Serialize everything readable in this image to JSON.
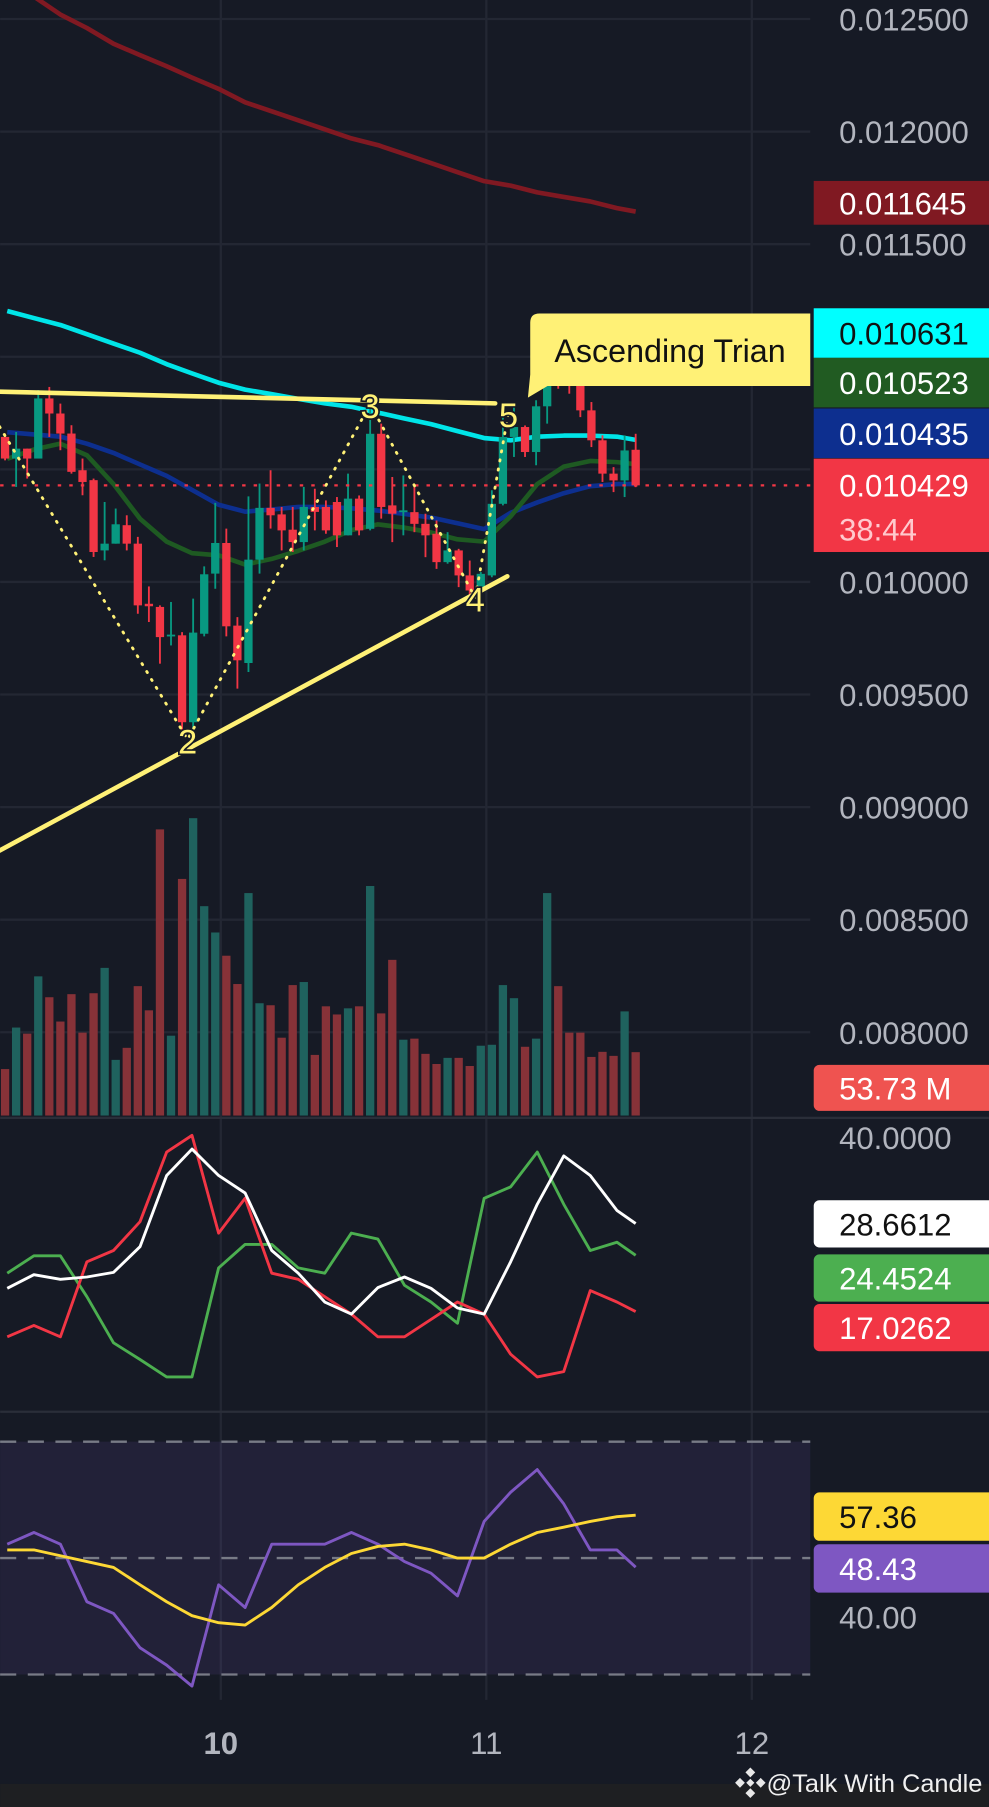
{
  "colors": {
    "background": "#161a25",
    "grid": "#232733",
    "candle_up": "#089981",
    "candle_down": "#f23645",
    "volume_up": "#1f625e",
    "volume_down": "#873238",
    "ma_long": "#801922",
    "ma_cyan": "#00e5e8",
    "ma_green": "#1e5a22",
    "ma_blue": "#0d2f8f",
    "pattern": "#fff176",
    "adx": "#ffffff",
    "plus_di": "#4caf50",
    "minus_di": "#f23645",
    "rsi": "#7e57c2",
    "rsi_ma": "#fdd835"
  },
  "price_axis": {
    "ticks": [
      "0.012500",
      "0.012000",
      "0.011500",
      "0.010000",
      "0.009500",
      "0.009000",
      "0.008500",
      "0.008000"
    ]
  },
  "badges": {
    "ma_long": {
      "value": "0.011645",
      "bg": "#801922",
      "fg": "#ffffff"
    },
    "ma_cyan": {
      "value": "0.010631",
      "bg": "#00ffff",
      "fg": "#111111"
    },
    "ma_green": {
      "value": "0.010523",
      "bg": "#215b22",
      "fg": "#ffffff"
    },
    "ma_blue": {
      "value": "0.010435",
      "bg": "#0d2f8f",
      "fg": "#ffffff"
    },
    "last_price": {
      "value": "0.010429",
      "countdown": "38:44",
      "bg": "#f23645",
      "fg": "#ffffff"
    },
    "volume": {
      "value": "53.73 M",
      "bg": "#ef5350",
      "fg": "#ffffff"
    },
    "adx": {
      "value": "28.6612",
      "bg": "#ffffff",
      "fg": "#111111"
    },
    "plus_di": {
      "value": "24.4524",
      "bg": "#4caf50",
      "fg": "#ffffff"
    },
    "minus_di": {
      "value": "17.0262",
      "bg": "#f23645",
      "fg": "#ffffff"
    },
    "rsi_ma": {
      "value": "57.36",
      "bg": "#fdd835",
      "fg": "#111111"
    },
    "rsi": {
      "value": "48.43",
      "bg": "#7e57c2",
      "fg": "#ffffff"
    }
  },
  "adx_axis": {
    "label": "40.0000"
  },
  "rsi_axis": {
    "label": "40.00",
    "bands": [
      70,
      50,
      30
    ]
  },
  "time_axis": [
    {
      "label": "10",
      "candle_index": 19.5,
      "bold": true
    },
    {
      "label": "11",
      "candle_index": 43.5,
      "bold": false
    },
    {
      "label": "12",
      "candle_index": 67.5,
      "bold": false
    }
  ],
  "pattern": {
    "label": "Ascending Trian",
    "resistance": [
      [
        -0.5,
        0.010845
      ],
      [
        44.3,
        0.010793
      ]
    ],
    "support": [
      [
        -0.5,
        0.008807
      ],
      [
        45.4,
        0.010025
      ]
    ],
    "zigzag": [
      [
        -0.5,
        0.01069
      ],
      [
        16.5,
        0.0093
      ],
      [
        33,
        0.01079
      ],
      [
        42.5,
        0.00993
      ],
      [
        45.5,
        0.01075
      ]
    ],
    "point_labels": [
      "",
      "2",
      "3",
      "4",
      "5"
    ]
  },
  "watermark": {
    "text": "@Talk With Candle"
  },
  "chart_data": {
    "type": "candlestick",
    "last_price": 0.010429,
    "ohlc": [
      [
        0.010644,
        0.010659,
        0.01054,
        0.010548
      ],
      [
        0.010548,
        0.010666,
        0.010422,
        0.010592
      ],
      [
        0.010592,
        0.010592,
        0.010459,
        0.010548
      ],
      [
        0.010548,
        0.010852,
        0.010548,
        0.010815
      ],
      [
        0.010815,
        0.010866,
        0.010644,
        0.010748
      ],
      [
        0.010748,
        0.010792,
        0.010585,
        0.010659
      ],
      [
        0.010659,
        0.010696,
        0.010481,
        0.010489
      ],
      [
        0.010496,
        0.010548,
        0.010385,
        0.010444
      ],
      [
        0.010452,
        0.010459,
        0.010111,
        0.010133
      ],
      [
        0.01014,
        0.010355,
        0.010096,
        0.01017
      ],
      [
        0.01017,
        0.010326,
        0.01017,
        0.010256
      ],
      [
        0.010252,
        0.010296,
        0.01014,
        0.01017
      ],
      [
        0.01017,
        0.0102,
        0.009859,
        0.009896
      ],
      [
        0.009903,
        0.00998,
        0.009822,
        0.009892
      ],
      [
        0.009889,
        0.009896,
        0.009637,
        0.009755
      ],
      [
        0.009758,
        0.009911,
        0.009718,
        0.009766
      ],
      [
        0.009763,
        0.009777,
        0.009318,
        0.009377
      ],
      [
        0.009377,
        0.009926,
        0.009281,
        0.009775
      ],
      [
        0.00977,
        0.010069,
        0.009758,
        0.010034
      ],
      [
        0.010037,
        0.010351,
        0.00997,
        0.010173
      ],
      [
        0.010173,
        0.010237,
        0.009758,
        0.009803
      ],
      [
        0.009806,
        0.009844,
        0.009526,
        0.009652
      ],
      [
        0.00964,
        0.01038,
        0.0096,
        0.010099
      ],
      [
        0.010099,
        0.010437,
        0.010037,
        0.010329
      ],
      [
        0.010329,
        0.010496,
        0.010237,
        0.010296
      ],
      [
        0.0103,
        0.010333,
        0.01014,
        0.010229
      ],
      [
        0.010232,
        0.010333,
        0.010133,
        0.010177
      ],
      [
        0.010177,
        0.010422,
        0.01014,
        0.010333
      ],
      [
        0.010333,
        0.010414,
        0.010229,
        0.010311
      ],
      [
        0.010333,
        0.010362,
        0.010214,
        0.010229
      ],
      [
        0.010355,
        0.010377,
        0.010155,
        0.010207
      ],
      [
        0.010207,
        0.010481,
        0.010207,
        0.01037
      ],
      [
        0.01037,
        0.010384,
        0.010207,
        0.010229
      ],
      [
        0.010236,
        0.010792,
        0.010229,
        0.010658
      ],
      [
        0.010658,
        0.010703,
        0.010281,
        0.010333
      ],
      [
        0.01034,
        0.010466,
        0.010177,
        0.010303
      ],
      [
        0.01031,
        0.010473,
        0.010207,
        0.010318
      ],
      [
        0.01031,
        0.010429,
        0.010221,
        0.010258
      ],
      [
        0.010258,
        0.010303,
        0.01011,
        0.010207
      ],
      [
        0.010214,
        0.010273,
        0.010058,
        0.010088
      ],
      [
        0.010088,
        0.010221,
        0.010081,
        0.01014
      ],
      [
        0.01014,
        0.010147,
        0.009977,
        0.010029
      ],
      [
        0.010029,
        0.010095,
        0.009925,
        0.009962
      ],
      [
        0.009962,
        0.010044,
        0.009947,
        0.010036
      ],
      [
        0.010029,
        0.010407,
        0.010021,
        0.010347
      ],
      [
        0.010347,
        0.010755,
        0.01034,
        0.010644
      ],
      [
        0.010644,
        0.010784,
        0.010555,
        0.010688
      ],
      [
        0.010688,
        0.010695,
        0.010555,
        0.010577
      ],
      [
        0.010577,
        0.010807,
        0.010518,
        0.01078
      ],
      [
        0.01078,
        0.011103,
        0.010703,
        0.011021
      ],
      [
        0.011021,
        0.011103,
        0.010858,
        0.010977
      ],
      [
        0.010984,
        0.011007,
        0.010836,
        0.010873
      ],
      [
        0.010873,
        0.010932,
        0.010732,
        0.010762
      ],
      [
        0.010762,
        0.010799,
        0.010599,
        0.010629
      ],
      [
        0.010629,
        0.010651,
        0.010444,
        0.010481
      ],
      [
        0.010481,
        0.01051,
        0.010399,
        0.010451
      ],
      [
        0.010451,
        0.010651,
        0.010377,
        0.010584
      ],
      [
        0.010587,
        0.010658,
        0.010421,
        0.010429
      ]
    ],
    "volume_millions": [
      39.4,
      74.6,
      69.4,
      118.0,
      100.3,
      79.7,
      102.9,
      70.3,
      103.7,
      125.2,
      47.2,
      57.4,
      109.7,
      89.2,
      242.6,
      67.7,
      200.6,
      252.1,
      177.5,
      155.2,
      135.5,
      111.5,
      188.6,
      95.2,
      93.5,
      66.0,
      110.6,
      113.2,
      51.4,
      92.6,
      85.7,
      90.9,
      92.6,
      194.6,
      86.6,
      132.0,
      64.3,
      65.2,
      52.3,
      43.7,
      48.9,
      48.9,
      42.0,
      59.2,
      60.0,
      110.6,
      99.5,
      58.3,
      65.2,
      188.6,
      109.7,
      70.3,
      70.3,
      49.7,
      54.0,
      50.6,
      88.3,
      53.73
    ],
    "indicator_candle_index": [
      0.2,
      2.6,
      5.0,
      7.4,
      9.8,
      12.2,
      14.6,
      16.9,
      19.3,
      21.7,
      24.1,
      26.5,
      28.9,
      31.3,
      33.7,
      36.1,
      38.5,
      40.9,
      43.3,
      45.7,
      48.1,
      50.5,
      52.9,
      55.3,
      57
    ],
    "moving_averages": {
      "ma_long": [
        0.0127,
        0.0126,
        0.01252,
        0.01246,
        0.01239,
        0.01234,
        0.01229,
        0.01224,
        0.01219,
        0.01213,
        0.01209,
        0.01205,
        0.01201,
        0.01197,
        0.01194,
        0.0119,
        0.01186,
        0.01182,
        0.01178,
        0.01176,
        0.01173,
        0.01171,
        0.01169,
        0.01166,
        0.011645
      ],
      "ma_cyan": [
        0.011203,
        0.011172,
        0.011141,
        0.0111,
        0.011059,
        0.011018,
        0.010967,
        0.010926,
        0.010885,
        0.010854,
        0.010834,
        0.010813,
        0.010793,
        0.010778,
        0.010752,
        0.010726,
        0.010701,
        0.01067,
        0.010639,
        0.010629,
        0.010645,
        0.01065,
        0.01065,
        0.010645,
        0.010631
      ],
      "ma_green": [
        0.010547,
        0.010588,
        0.010614,
        0.010563,
        0.010435,
        0.010281,
        0.010179,
        0.010128,
        0.010118,
        0.010077,
        0.010102,
        0.010138,
        0.010179,
        0.01023,
        0.010256,
        0.010241,
        0.01022,
        0.010189,
        0.010179,
        0.010291,
        0.010435,
        0.010512,
        0.010537,
        0.010532,
        0.010523
      ],
      "ma_blue": [
        0.010665,
        0.010655,
        0.010645,
        0.010614,
        0.010573,
        0.010522,
        0.010471,
        0.010409,
        0.010343,
        0.010312,
        0.010322,
        0.010333,
        0.010333,
        0.010327,
        0.010317,
        0.010302,
        0.010286,
        0.010261,
        0.010235,
        0.010307,
        0.010353,
        0.010394,
        0.010425,
        0.010435,
        0.010435
      ]
    },
    "adx": {
      "adx": [
        20.1,
        21.9,
        21.3,
        21.6,
        22.2,
        25.6,
        35.0,
        38.5,
        35.0,
        32.7,
        25.1,
        22.1,
        18.3,
        16.7,
        20.2,
        21.6,
        20.1,
        17.5,
        16.7,
        23.6,
        31.2,
        37.6,
        35.0,
        30.4,
        28.6612
      ],
      "plus_di": [
        22.1,
        24.4,
        24.4,
        19.0,
        12.9,
        10.7,
        8.4,
        8.4,
        22.8,
        25.9,
        25.9,
        22.8,
        22.1,
        27.4,
        26.6,
        20.5,
        18.3,
        15.5,
        32.0,
        33.5,
        38.1,
        31.2,
        25.1,
        26.2,
        24.4524
      ],
      "minus_di": [
        13.7,
        15.2,
        13.7,
        23.6,
        25.1,
        28.9,
        38.1,
        40.3,
        27.4,
        32.0,
        22.1,
        21.3,
        19.0,
        16.7,
        13.7,
        13.7,
        16.0,
        18.3,
        16.7,
        11.4,
        8.4,
        9.1,
        19.8,
        18.3,
        17.0262
      ]
    },
    "rsi": {
      "rsi": [
        52.4,
        54.4,
        52.4,
        42.5,
        40.5,
        34.6,
        31.6,
        28.0,
        45.4,
        41.5,
        52.4,
        52.4,
        52.4,
        54.4,
        52.4,
        49.4,
        47.4,
        43.5,
        56.3,
        61.3,
        65.2,
        59.3,
        51.4,
        51.4,
        48.43
      ],
      "rsi_ma": [
        51.4,
        51.4,
        50.4,
        49.4,
        48.4,
        45.4,
        42.5,
        40.1,
        38.9,
        38.5,
        41.5,
        45.4,
        48.4,
        50.8,
        52.0,
        52.4,
        51.4,
        50.0,
        50.0,
        52.4,
        54.4,
        55.3,
        56.3,
        57.1,
        57.36
      ]
    }
  }
}
